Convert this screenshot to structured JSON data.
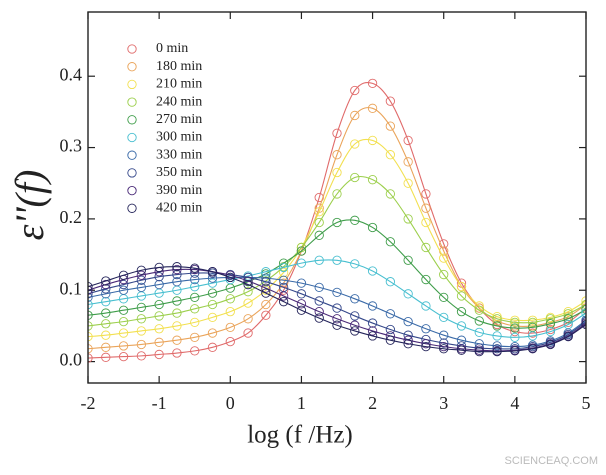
{
  "chart_data": {
    "type": "line",
    "markers": true,
    "x_label": "log (f /Hz)",
    "y_label": "ε''(f)",
    "watermark": "SCIENCEAQ.COM",
    "xlim": [
      -2,
      5
    ],
    "ylim": [
      -0.03,
      0.49
    ],
    "xticks": [
      -2,
      -1,
      0,
      1,
      2,
      3,
      4,
      5
    ],
    "yticks": [
      {
        "value": 0,
        "label": "0.0"
      },
      0.1,
      0.2,
      0.3,
      0.4
    ],
    "legend": "upper-left",
    "x": [
      -2,
      -1.75,
      -1.5,
      -1.25,
      -1,
      -0.75,
      -0.5,
      -0.25,
      0,
      0.25,
      0.5,
      0.75,
      1,
      1.25,
      1.5,
      1.75,
      2,
      2.25,
      2.5,
      2.75,
      3,
      3.25,
      3.5,
      3.75,
      4,
      4.25,
      4.5,
      4.75,
      5
    ],
    "series": [
      {
        "name": "0 min",
        "color": "#e06a6a",
        "values": [
          0.005,
          0.006,
          0.007,
          0.008,
          0.01,
          0.012,
          0.015,
          0.02,
          0.028,
          0.04,
          0.065,
          0.1,
          0.155,
          0.23,
          0.32,
          0.38,
          0.39,
          0.365,
          0.31,
          0.235,
          0.165,
          0.11,
          0.075,
          0.052,
          0.042,
          0.04,
          0.045,
          0.055,
          0.075
        ]
      },
      {
        "name": "180 min",
        "color": "#eaa45a",
        "values": [
          0.018,
          0.02,
          0.022,
          0.024,
          0.027,
          0.03,
          0.034,
          0.04,
          0.048,
          0.06,
          0.08,
          0.11,
          0.155,
          0.215,
          0.29,
          0.345,
          0.355,
          0.33,
          0.28,
          0.215,
          0.155,
          0.105,
          0.075,
          0.057,
          0.05,
          0.05,
          0.055,
          0.063,
          0.08
        ]
      },
      {
        "name": "210 min",
        "color": "#f2e050",
        "values": [
          0.035,
          0.037,
          0.04,
          0.043,
          0.046,
          0.05,
          0.055,
          0.062,
          0.07,
          0.082,
          0.1,
          0.125,
          0.16,
          0.21,
          0.265,
          0.305,
          0.31,
          0.29,
          0.25,
          0.195,
          0.145,
          0.105,
          0.078,
          0.063,
          0.058,
          0.058,
          0.062,
          0.07,
          0.085
        ]
      },
      {
        "name": "240 min",
        "color": "#9ccf4c",
        "values": [
          0.05,
          0.053,
          0.056,
          0.06,
          0.064,
          0.068,
          0.074,
          0.08,
          0.088,
          0.098,
          0.113,
          0.133,
          0.16,
          0.195,
          0.235,
          0.258,
          0.255,
          0.235,
          0.2,
          0.16,
          0.122,
          0.092,
          0.072,
          0.06,
          0.055,
          0.055,
          0.06,
          0.067,
          0.08
        ]
      },
      {
        "name": "270 min",
        "color": "#3f9d4a",
        "values": [
          0.065,
          0.068,
          0.072,
          0.076,
          0.08,
          0.085,
          0.09,
          0.096,
          0.103,
          0.112,
          0.123,
          0.138,
          0.155,
          0.177,
          0.195,
          0.198,
          0.188,
          0.168,
          0.142,
          0.115,
          0.09,
          0.07,
          0.057,
          0.05,
          0.047,
          0.048,
          0.053,
          0.06,
          0.073
        ]
      },
      {
        "name": "300 min",
        "color": "#48bfd0",
        "values": [
          0.08,
          0.084,
          0.088,
          0.092,
          0.096,
          0.1,
          0.105,
          0.11,
          0.115,
          0.12,
          0.126,
          0.132,
          0.138,
          0.142,
          0.142,
          0.137,
          0.127,
          0.112,
          0.095,
          0.078,
          0.062,
          0.05,
          0.041,
          0.036,
          0.034,
          0.036,
          0.042,
          0.052,
          0.068
        ]
      },
      {
        "name": "330 min",
        "color": "#3a6aa8",
        "values": [
          0.09,
          0.095,
          0.1,
          0.104,
          0.108,
          0.112,
          0.115,
          0.117,
          0.118,
          0.118,
          0.117,
          0.114,
          0.11,
          0.104,
          0.097,
          0.088,
          0.078,
          0.067,
          0.056,
          0.046,
          0.037,
          0.03,
          0.025,
          0.022,
          0.021,
          0.023,
          0.029,
          0.04,
          0.058
        ]
      },
      {
        "name": "350 min",
        "color": "#34478a",
        "values": [
          0.095,
          0.102,
          0.108,
          0.114,
          0.119,
          0.122,
          0.124,
          0.124,
          0.122,
          0.118,
          0.112,
          0.104,
          0.095,
          0.085,
          0.075,
          0.064,
          0.054,
          0.045,
          0.037,
          0.031,
          0.026,
          0.022,
          0.019,
          0.018,
          0.018,
          0.021,
          0.027,
          0.038,
          0.056
        ]
      },
      {
        "name": "390 min",
        "color": "#4a2a78",
        "values": [
          0.1,
          0.108,
          0.115,
          0.121,
          0.126,
          0.129,
          0.129,
          0.126,
          0.121,
          0.113,
          0.103,
          0.092,
          0.081,
          0.07,
          0.06,
          0.051,
          0.043,
          0.036,
          0.03,
          0.025,
          0.021,
          0.018,
          0.016,
          0.015,
          0.016,
          0.019,
          0.025,
          0.036,
          0.054
        ]
      },
      {
        "name": "420 min",
        "color": "#24245a",
        "values": [
          0.105,
          0.113,
          0.121,
          0.128,
          0.132,
          0.133,
          0.131,
          0.126,
          0.118,
          0.108,
          0.096,
          0.084,
          0.072,
          0.061,
          0.051,
          0.043,
          0.036,
          0.03,
          0.025,
          0.021,
          0.018,
          0.016,
          0.014,
          0.014,
          0.015,
          0.018,
          0.024,
          0.035,
          0.052
        ]
      }
    ]
  }
}
